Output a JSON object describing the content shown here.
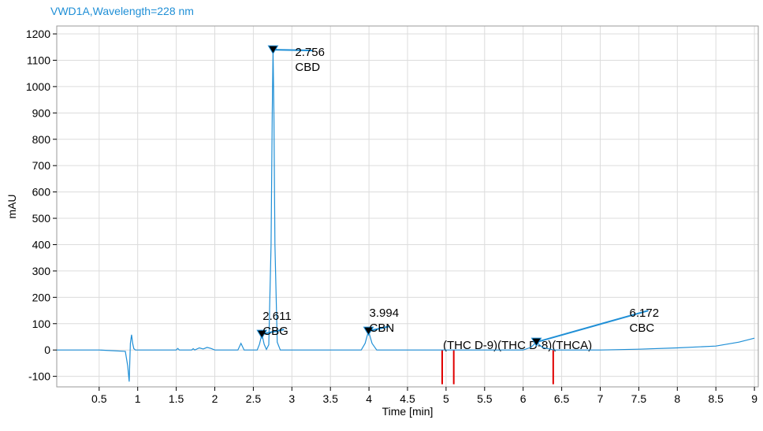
{
  "chart_data": {
    "type": "line",
    "title": "VWD1A,Wavelength=228 nm",
    "xlabel": "Time [min]",
    "ylabel": "mAU",
    "xlim": [
      -0.05,
      9.05
    ],
    "ylim": [
      -140,
      1230
    ],
    "x_ticks": [
      0.5,
      1,
      1.5,
      2,
      2.5,
      3,
      3.5,
      4,
      4.5,
      5,
      5.5,
      6,
      6.5,
      7,
      7.5,
      8,
      8.5,
      9
    ],
    "x_tick_labels": [
      "0.5",
      "1",
      "1.5",
      "2",
      "2.5",
      "3",
      "3.5",
      "4",
      "4.5",
      "5",
      "5.5",
      "6",
      "6.5",
      "7",
      "7.5",
      "8",
      "8.5",
      "9"
    ],
    "y_ticks": [
      -100,
      0,
      100,
      200,
      300,
      400,
      500,
      600,
      700,
      800,
      900,
      1000,
      1100,
      1200
    ],
    "y_tick_labels": [
      "-100",
      "0",
      "100",
      "200",
      "300",
      "400",
      "500",
      "600",
      "700",
      "800",
      "900",
      "1000",
      "1100",
      "1200"
    ],
    "grid": true,
    "line_color": "#1f8fd6",
    "marker_color": "#e00000",
    "series": [
      {
        "x": [
          -0.05,
          0.5,
          0.84,
          0.87,
          0.89,
          0.905,
          0.92,
          0.935,
          0.95,
          0.97,
          1.0,
          1.1,
          1.5,
          1.52,
          1.54,
          1.7,
          1.72,
          1.74,
          1.8,
          1.85,
          1.9,
          1.95,
          2.0,
          2.3,
          2.34,
          2.38,
          2.55,
          2.58,
          2.611,
          2.64,
          2.67,
          2.7,
          2.73,
          2.745,
          2.756,
          2.767,
          2.78,
          2.81,
          2.85,
          3.0,
          3.5,
          3.9,
          3.95,
          3.994,
          4.04,
          4.1,
          4.3,
          5.0,
          6.0,
          6.1,
          6.172,
          6.25,
          6.4,
          7.0,
          7.5,
          8.0,
          8.5,
          8.8,
          9.0
        ],
        "y": [
          0,
          0,
          -5,
          -60,
          -120,
          25,
          58,
          25,
          5,
          0,
          0,
          0,
          0,
          6,
          0,
          0,
          5,
          0,
          8,
          4,
          10,
          6,
          0,
          0,
          25,
          0,
          0,
          22,
          60,
          22,
          2,
          20,
          400,
          900,
          1140,
          900,
          400,
          30,
          0,
          0,
          0,
          0,
          25,
          72,
          25,
          0,
          0,
          0,
          0,
          10,
          30,
          10,
          0,
          0,
          3,
          8,
          15,
          30,
          45
        ]
      }
    ],
    "peaks": [
      {
        "time": "2.611",
        "name": "CBG",
        "x": 2.611,
        "y": 60
      },
      {
        "time": "2.756",
        "name": "CBD",
        "x": 2.756,
        "y": 1140
      },
      {
        "time": "3.994",
        "name": "CBN",
        "x": 3.994,
        "y": 72
      },
      {
        "time": "6.172",
        "name": "CBC",
        "x": 6.172,
        "y": 30
      }
    ],
    "expected_peaks": [
      {
        "name": "(THC D-9)",
        "x": 4.95
      },
      {
        "name": "(THC D-8)",
        "x": 5.1
      },
      {
        "name": "(THCA)",
        "x": 6.39
      }
    ]
  }
}
